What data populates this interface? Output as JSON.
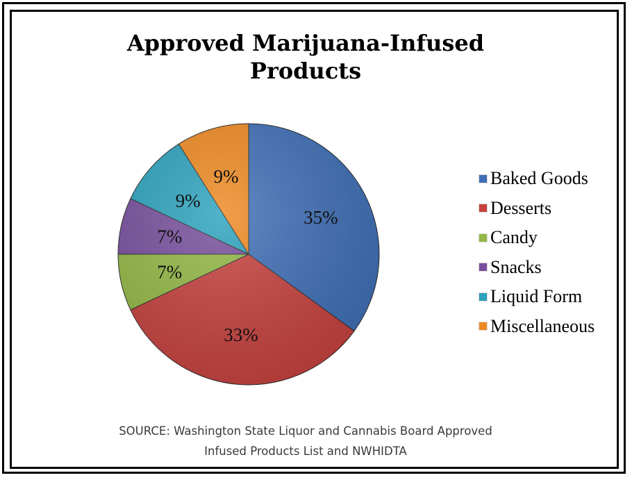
{
  "chart_data": {
    "type": "pie",
    "title": "Approved Marijuana-Infused Products",
    "categories": [
      "Baked Goods",
      "Desserts",
      "Candy",
      "Snacks",
      "Liquid Form",
      "Miscellaneous"
    ],
    "values": [
      35,
      33,
      7,
      7,
      9,
      9
    ],
    "data_labels": [
      "35%",
      "33%",
      "7%",
      "7%",
      "9%",
      "9%"
    ],
    "colors": [
      "#3f6fb6",
      "#c6423f",
      "#93b946",
      "#774f9d",
      "#2ca2bd",
      "#ee8921"
    ],
    "legend_position": "right",
    "source_line1": "SOURCE: Washington State Liquor and Cannabis Board Approved",
    "source_line2": "Infused Products List and NWHIDTA"
  }
}
